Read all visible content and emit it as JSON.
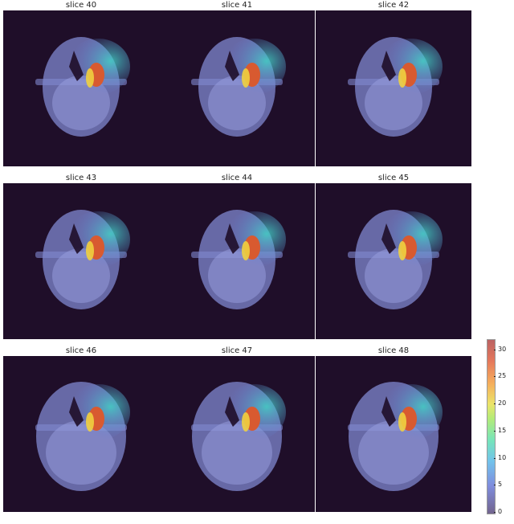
{
  "panels": [
    {
      "title": "slice 40"
    },
    {
      "title": "slice 41"
    },
    {
      "title": "slice 42"
    },
    {
      "title": "slice 43"
    },
    {
      "title": "slice 44"
    },
    {
      "title": "slice 45"
    },
    {
      "title": "slice 46"
    },
    {
      "title": "slice 47"
    },
    {
      "title": "slice 48"
    }
  ],
  "colorbar": {
    "ticks": [
      "0",
      "5",
      "10",
      "15",
      "20",
      "25",
      "30"
    ],
    "range": [
      0,
      32
    ],
    "colormap": "turbo"
  },
  "colors": {
    "background": "#1f0e29",
    "tissue": "#8a90d8",
    "dose_high": "#d04a30",
    "dose_mid": "#f0d040",
    "dose_low": "#40c8d8"
  }
}
